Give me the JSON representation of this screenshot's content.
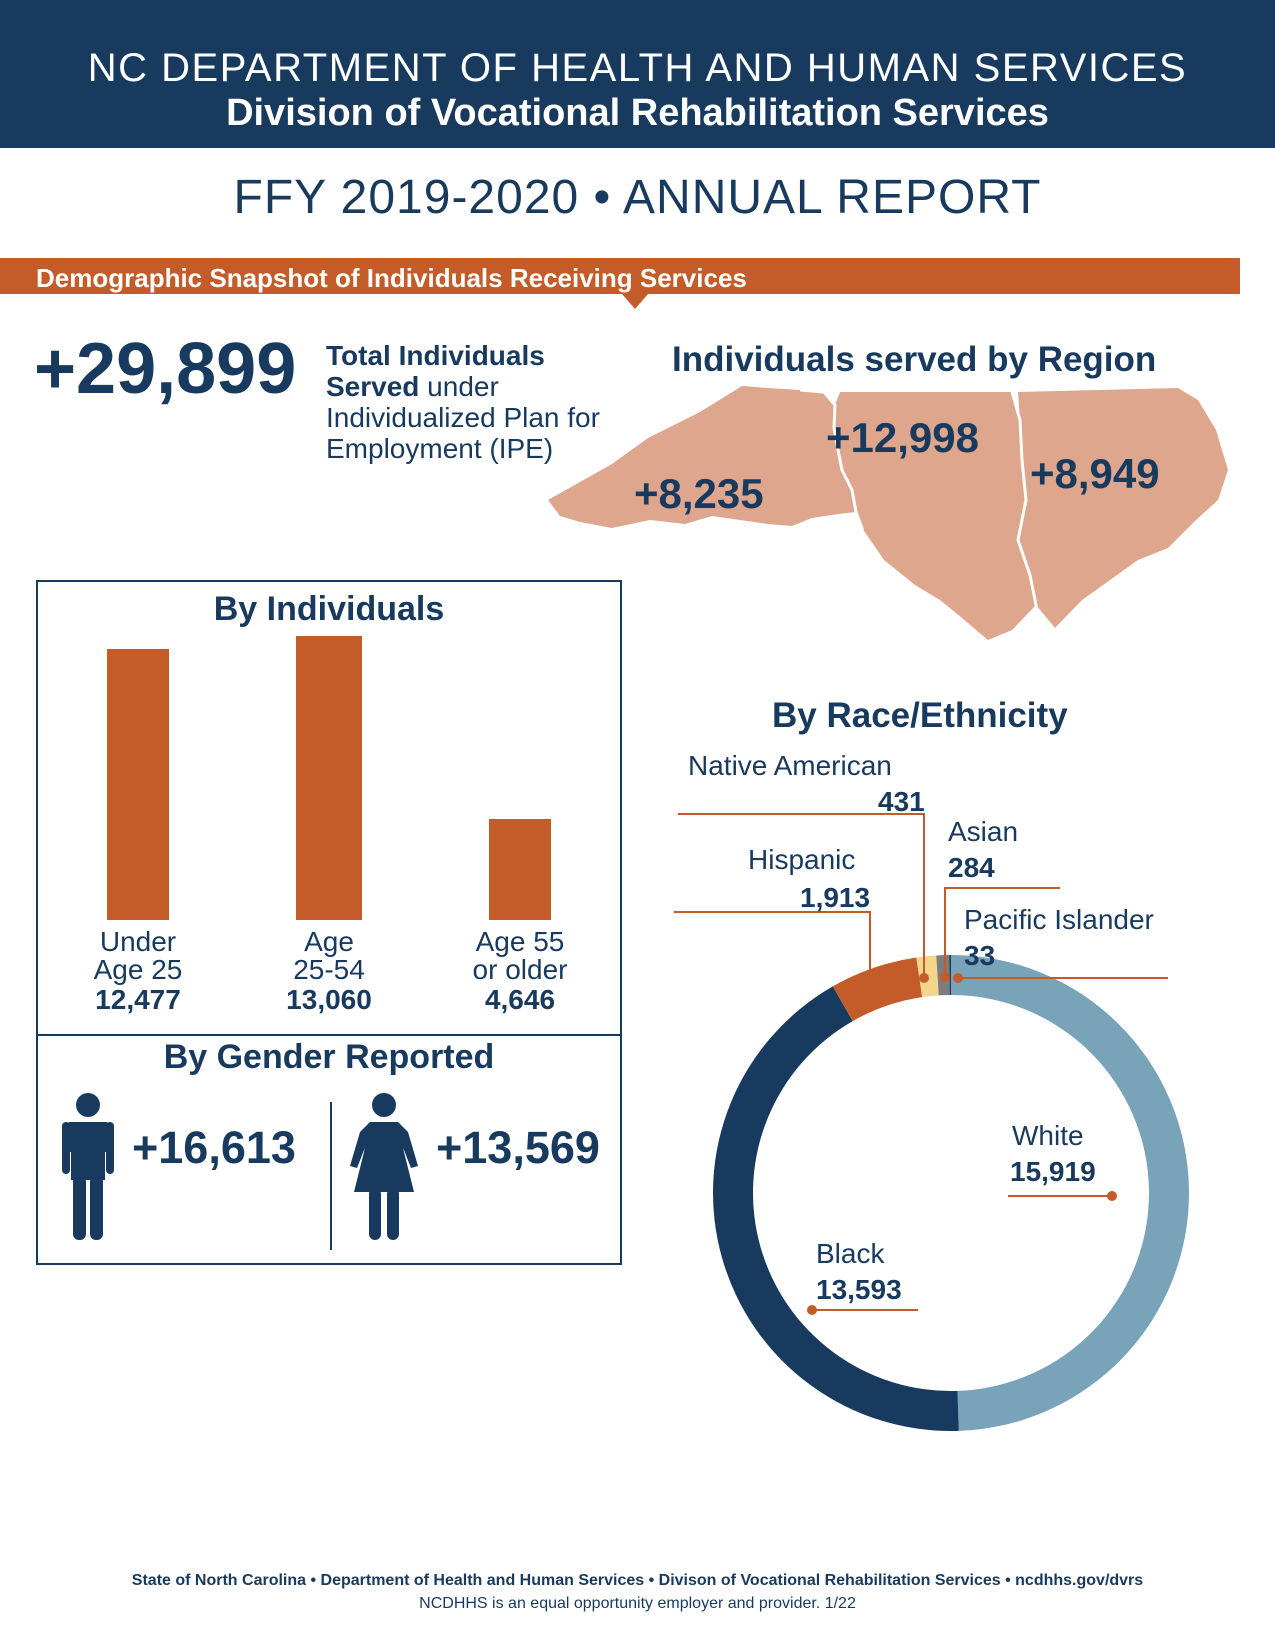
{
  "header": {
    "department": "NC DEPARTMENT OF HEALTH AND HUMAN SERVICES",
    "division": "Division of Vocational Rehabilitation Services"
  },
  "report_title": "FFY 2019-2020 • ANNUAL REPORT",
  "banner": "Demographic Snapshot of Individuals Receiving Services",
  "total": {
    "value": "+29,899",
    "desc_bold": "Total Individuals Served",
    "desc_rest": " under Individualized Plan for Employment (IPE)"
  },
  "colors": {
    "navy": "#173a5e",
    "orange": "#c45c2a",
    "map": "#dfa68e",
    "white_slice": "#78a3b8",
    "yellow": "#f3d68b",
    "gray": "#7d7d7d"
  },
  "chart_data": [
    {
      "type": "map",
      "title": "Individuals served by Region",
      "regions": [
        {
          "label": "+8,235",
          "value": 8235
        },
        {
          "label": "+12,998",
          "value": 12998
        },
        {
          "label": "+8,949",
          "value": 8949
        }
      ]
    },
    {
      "type": "bar",
      "title": "By Individuals",
      "categories": [
        "Under Age 25",
        "Age 25-54",
        "Age 55 or older"
      ],
      "category_lines": [
        [
          "Under",
          "Age 25"
        ],
        [
          "Age",
          "25-54"
        ],
        [
          "Age 55",
          "or older"
        ]
      ],
      "values": [
        12477,
        13060,
        4646
      ],
      "value_labels": [
        "12,477",
        "13,060",
        "4,646"
      ],
      "ylim": [
        0,
        13060
      ]
    },
    {
      "type": "table",
      "title": "By Gender Reported",
      "items": [
        {
          "icon": "male-person-icon",
          "label": "+16,613",
          "value": 16613
        },
        {
          "icon": "female-person-icon",
          "label": "+13,569",
          "value": 13569
        }
      ]
    },
    {
      "type": "pie",
      "subtype": "donut",
      "title": "By Race/Ethnicity",
      "slices": [
        {
          "name": "White",
          "value": 15919,
          "label": "15,919",
          "color": "#78a3b8"
        },
        {
          "name": "Black",
          "value": 13593,
          "label": "13,593",
          "color": "#173a5e"
        },
        {
          "name": "Hispanic",
          "value": 1913,
          "label": "1,913",
          "color": "#c45c2a"
        },
        {
          "name": "Native American",
          "value": 431,
          "label": "431",
          "color": "#f3d68b"
        },
        {
          "name": "Asian",
          "value": 284,
          "label": "284",
          "color": "#7d7d7d"
        },
        {
          "name": "Pacific Islander",
          "value": 33,
          "label": "33",
          "color": "#173a5e"
        }
      ]
    }
  ],
  "footer": {
    "line1": "State of North Carolina • Department of Health and Human Services • Divison of Vocational Rehabilitation Services • ncdhhs.gov/dvrs",
    "line2": "NCDHHS is an equal opportunity employer and provider. 1/22"
  }
}
